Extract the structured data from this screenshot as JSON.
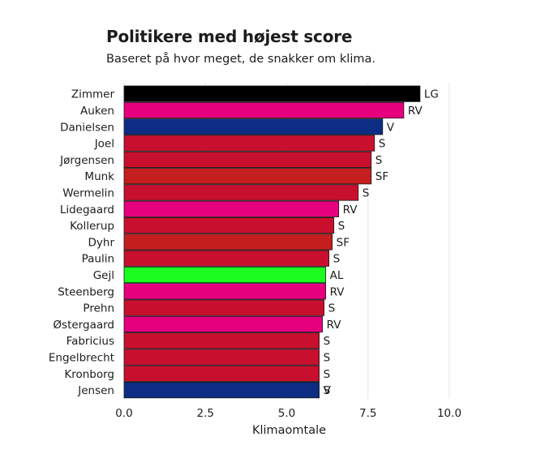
{
  "chart_data": {
    "type": "bar",
    "orientation": "horizontal",
    "title": "Politikere med højest score",
    "subtitle": "Baseret på hvor meget, de snakker om klima.",
    "xlabel": "Klimaomtale",
    "xlim": [
      0,
      10
    ],
    "xticks": [
      0,
      2.5,
      5,
      7.5,
      10
    ],
    "xtick_labels": [
      "0.0",
      "2.5",
      "5.0",
      "7.5",
      "10.0"
    ],
    "grid": "vertical",
    "categories": [
      "Zimmer",
      "Auken",
      "Danielsen",
      "Joel",
      "Jørgensen",
      "Munk",
      "Wermelin",
      "Lidegaard",
      "Kollerup",
      "Dyhr",
      "Paulin",
      "Gejl",
      "Steenberg",
      "Prehn",
      "Østergaard",
      "Fabricius",
      "Engelbrecht",
      "Kronborg",
      "Jensen"
    ],
    "values": [
      9.1,
      8.6,
      7.95,
      7.7,
      7.6,
      7.6,
      7.2,
      6.6,
      6.45,
      6.4,
      6.3,
      6.2,
      6.2,
      6.15,
      6.1,
      6.0,
      6.0,
      6.0,
      6.0
    ],
    "party_labels": [
      "LG",
      "RV",
      "V",
      "S",
      "S",
      "SF",
      "S",
      "RV",
      "S",
      "SF",
      "S",
      "AL",
      "RV",
      "S",
      "RV",
      "S",
      "S",
      "S",
      "V"
    ],
    "extra_labels": {
      "18": "S"
    },
    "colors": {
      "LG": "#000000",
      "RV": "#e6007e",
      "V": "#0c2d83",
      "S": "#c8102e",
      "SF": "#c41e1e",
      "AL": "#1dfc21"
    }
  }
}
